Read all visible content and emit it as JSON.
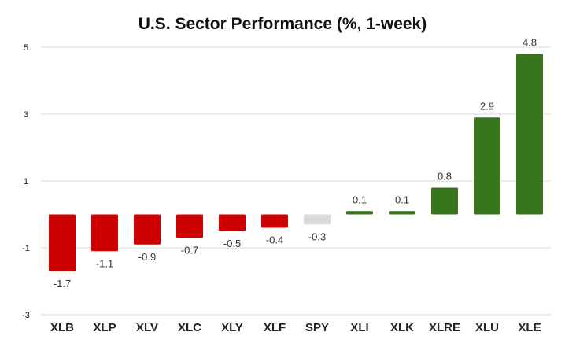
{
  "chart_data": {
    "type": "bar",
    "title": "U.S. Sector Performance (%, 1-week)",
    "xlabel": "",
    "ylabel": "",
    "categories": [
      "XLB",
      "XLP",
      "XLV",
      "XLC",
      "XLY",
      "XLF",
      "SPY",
      "XLI",
      "XLK",
      "XLRE",
      "XLU",
      "XLE"
    ],
    "values": [
      -1.7,
      -1.1,
      -0.9,
      -0.7,
      -0.5,
      -0.4,
      -0.3,
      0.1,
      0.1,
      0.8,
      2.9,
      4.8
    ],
    "ylim": [
      -3,
      5
    ],
    "yticks": [
      5,
      3,
      1,
      -1,
      -3
    ],
    "grid": true,
    "legend": "none",
    "colors": {
      "negative": "#cc0000",
      "positive": "#38761d",
      "benchmark": "#d9d9d9"
    },
    "benchmark": "SPY"
  }
}
